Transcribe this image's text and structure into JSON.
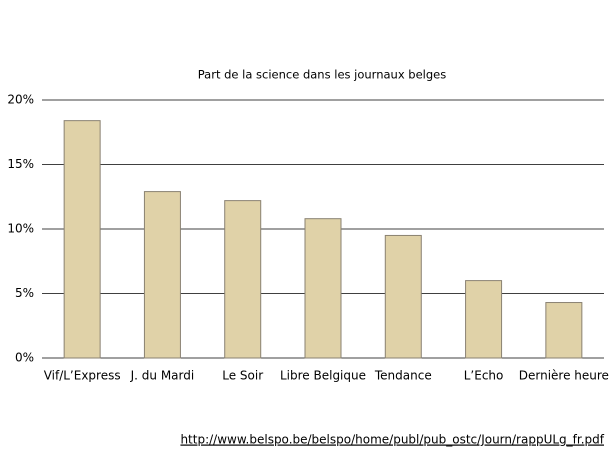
{
  "chart_data": {
    "type": "bar",
    "title": "Part de la science dans les journaux belges",
    "categories": [
      "Vif/L’Express",
      "J. du Mardi",
      "Le Soir",
      "Libre Belgique",
      "Tendance",
      "L’Echo",
      "Dernière heure"
    ],
    "values": [
      18.4,
      12.9,
      12.2,
      10.8,
      9.5,
      6.0,
      4.3
    ],
    "color": "#e0d2a8",
    "ylim": [
      0,
      20
    ],
    "yticks": [
      {
        "value": 0,
        "label": "0%"
      },
      {
        "value": 5,
        "label": "5%"
      },
      {
        "value": 10,
        "label": "10%"
      },
      {
        "value": 15,
        "label": "15%"
      },
      {
        "value": 20,
        "label": "20%"
      }
    ],
    "grid": true,
    "source": "http://www.belspo.be/belspo/home/publ/pub_ostc/Journ/rappULg_fr.pdf"
  }
}
